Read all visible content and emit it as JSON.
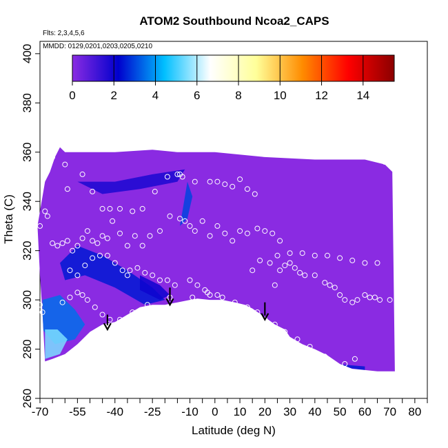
{
  "chart_data": {
    "type": "heatmap",
    "title": "ATOM2 Southbound Ncoa2_CAPS",
    "flights_label": "Flts: 2,3,4,5,6",
    "dates_label": "MMDD: 0129,0201,0203,0205,0210",
    "xlabel": "Latitude (deg N)",
    "ylabel": "Theta (C)",
    "xlim": [
      -70,
      85
    ],
    "ylim": [
      260,
      405
    ],
    "x_ticks": [
      -70,
      -55,
      -40,
      -25,
      -10,
      0,
      10,
      20,
      30,
      40,
      50,
      60,
      70,
      80
    ],
    "x_tick_labels": [
      "-70",
      "-55",
      "-40",
      "-25",
      "-10",
      "0",
      "10",
      "20",
      "30",
      "40",
      "50",
      "60",
      "70",
      "80"
    ],
    "x_minor_ticks": [
      -65,
      -60,
      -50,
      -45,
      -35,
      -30,
      -20,
      -15,
      -5,
      5,
      15,
      25,
      35,
      45,
      55,
      65,
      75,
      85
    ],
    "y_ticks": [
      260,
      280,
      300,
      320,
      340,
      360,
      380,
      400
    ],
    "y_tick_labels": [
      "260",
      "280",
      "300",
      "320",
      "340",
      "360",
      "380",
      "400"
    ],
    "colorbar": {
      "range": [
        0,
        15.5
      ],
      "ticks": [
        0,
        2,
        4,
        6,
        8,
        10,
        12,
        14
      ],
      "tick_labels": [
        "0",
        "2",
        "4",
        "6",
        "8",
        "10",
        "12",
        "14"
      ],
      "colors": [
        "#8a2be2",
        "#0000cd",
        "#00bfff",
        "#ffffff",
        "#ffff99",
        "#ff8c00",
        "#ff0000",
        "#8b0000"
      ]
    },
    "field_color": "#8a2be2",
    "domain_top": [
      [
        -68,
        348
      ],
      [
        -67,
        350
      ],
      [
        -66,
        352
      ],
      [
        -65,
        355
      ],
      [
        -64,
        358
      ],
      [
        -62,
        362
      ],
      [
        -60,
        360
      ],
      [
        -40,
        360
      ],
      [
        -25,
        361
      ],
      [
        -15,
        360
      ],
      [
        0,
        360
      ],
      [
        20,
        358
      ],
      [
        40,
        357
      ],
      [
        60,
        357
      ],
      [
        68,
        355
      ],
      [
        71,
        352
      ]
    ],
    "domain_bottom": [
      [
        -71,
        330
      ],
      [
        -70,
        310
      ],
      [
        -69,
        295
      ],
      [
        -68,
        275
      ],
      [
        -65,
        276
      ],
      [
        -60,
        278
      ],
      [
        -55,
        282
      ],
      [
        -50,
        287
      ],
      [
        -45,
        290
      ],
      [
        -40,
        291
      ],
      [
        -35,
        294
      ],
      [
        -30,
        297
      ],
      [
        -25,
        298
      ],
      [
        -20,
        298
      ],
      [
        -15,
        299
      ],
      [
        -10,
        300
      ],
      [
        -7,
        300.5
      ],
      [
        -2,
        300
      ],
      [
        3,
        300
      ],
      [
        8,
        299
      ],
      [
        12,
        298
      ],
      [
        15,
        296.5
      ],
      [
        20,
        293
      ],
      [
        24,
        290
      ],
      [
        28,
        288
      ],
      [
        30,
        285
      ],
      [
        35,
        282
      ],
      [
        40,
        280
      ],
      [
        45,
        277.5
      ],
      [
        50,
        274
      ],
      [
        55,
        272
      ],
      [
        60,
        271.5
      ],
      [
        65,
        271
      ],
      [
        70,
        271
      ],
      [
        72,
        271
      ]
    ],
    "features": [
      {
        "name": "blue-band-midlat",
        "value": 2.5,
        "poly": [
          [
            -62,
            315
          ],
          [
            -55,
            322
          ],
          [
            -45,
            318
          ],
          [
            -35,
            312
          ],
          [
            -25,
            305
          ],
          [
            -20,
            300
          ],
          [
            -28,
            298
          ],
          [
            -40,
            305
          ],
          [
            -52,
            310
          ],
          [
            -60,
            308
          ]
        ]
      },
      {
        "name": "blue-band-lowlat",
        "value": 2.0,
        "poly": [
          [
            -30,
            310
          ],
          [
            -22,
            306
          ],
          [
            -18,
            302
          ],
          [
            -22,
            300
          ],
          [
            -30,
            304
          ]
        ]
      },
      {
        "name": "blue-core-south",
        "value": 3.5,
        "poly": [
          [
            -69,
            300
          ],
          [
            -62,
            302
          ],
          [
            -56,
            296
          ],
          [
            -52,
            290
          ],
          [
            -56,
            284
          ],
          [
            -64,
            282
          ],
          [
            -69,
            288
          ]
        ]
      },
      {
        "name": "cyan-core-south",
        "value": 5.5,
        "poly": [
          [
            -68,
            288
          ],
          [
            -63,
            288
          ],
          [
            -59,
            284
          ],
          [
            -62,
            278
          ],
          [
            -68,
            276
          ]
        ]
      },
      {
        "name": "filament-upper",
        "value": 1.8,
        "poly": [
          [
            -55,
            348
          ],
          [
            -40,
            348
          ],
          [
            -25,
            351
          ],
          [
            -12,
            353
          ],
          [
            -15,
            348
          ],
          [
            -30,
            345
          ],
          [
            -45,
            343
          ]
        ]
      },
      {
        "name": "filament-vertical",
        "value": 3.0,
        "poly": [
          [
            -11,
            348
          ],
          [
            -9,
            342
          ],
          [
            -11,
            333
          ],
          [
            -14,
            330
          ],
          [
            -13,
            336
          ]
        ]
      },
      {
        "name": "bottom-edge-north",
        "value": 2.5,
        "poly": [
          [
            48,
            274
          ],
          [
            60,
            273
          ],
          [
            60,
            271.5
          ],
          [
            48,
            273
          ]
        ]
      }
    ],
    "observation_points": [
      [
        -70,
        330
      ],
      [
        -70,
        298
      ],
      [
        -69,
        295
      ],
      [
        -68,
        336
      ],
      [
        -67,
        334
      ],
      [
        -65,
        323
      ],
      [
        -63,
        322
      ],
      [
        -61,
        323
      ],
      [
        -59,
        324
      ],
      [
        -57,
        320
      ],
      [
        -55,
        322
      ],
      [
        -53,
        325
      ],
      [
        -51,
        328
      ],
      [
        -49,
        324
      ],
      [
        -47,
        323
      ],
      [
        -45,
        326
      ],
      [
        -43,
        325
      ],
      [
        -41,
        332
      ],
      [
        -38,
        327
      ],
      [
        -35,
        322
      ],
      [
        -32,
        326
      ],
      [
        -29,
        322
      ],
      [
        -26,
        326
      ],
      [
        -22,
        328
      ],
      [
        -18,
        334
      ],
      [
        -14,
        333
      ],
      [
        -12,
        332
      ],
      [
        -10,
        330
      ],
      [
        -8,
        328
      ],
      [
        -5,
        332
      ],
      [
        -2,
        326
      ],
      [
        1,
        330
      ],
      [
        4,
        327
      ],
      [
        7,
        324
      ],
      [
        10,
        328
      ],
      [
        13,
        327
      ],
      [
        17,
        329
      ],
      [
        20,
        328
      ],
      [
        23,
        327
      ],
      [
        26,
        324
      ],
      [
        -59,
        345
      ],
      [
        -53,
        351
      ],
      [
        -49,
        344
      ],
      [
        -45,
        337
      ],
      [
        -42,
        337
      ],
      [
        -38,
        337
      ],
      [
        -33,
        336
      ],
      [
        -29,
        337
      ],
      [
        -24,
        344
      ],
      [
        -19,
        350
      ],
      [
        -15,
        351
      ],
      [
        -14,
        351
      ],
      [
        -13,
        350
      ],
      [
        -8,
        348
      ],
      [
        -2,
        348
      ],
      [
        1,
        348
      ],
      [
        4,
        347
      ],
      [
        7,
        346
      ],
      [
        10,
        349
      ],
      [
        13,
        345
      ],
      [
        16,
        343
      ],
      [
        -61,
        299
      ],
      [
        -58,
        301
      ],
      [
        -55,
        303
      ],
      [
        -53,
        302
      ],
      [
        -51,
        300
      ],
      [
        -48,
        297
      ],
      [
        -45,
        294
      ],
      [
        -42,
        292
      ],
      [
        -38,
        292
      ],
      [
        -33,
        295
      ],
      [
        -27,
        298
      ],
      [
        -18,
        301
      ],
      [
        -9,
        301
      ],
      [
        -3,
        303
      ],
      [
        3,
        301
      ],
      [
        8,
        299
      ],
      [
        13,
        297
      ],
      [
        17,
        295
      ],
      [
        20,
        292
      ],
      [
        24,
        290
      ],
      [
        28,
        287
      ],
      [
        33,
        284
      ],
      [
        38,
        281
      ],
      [
        44,
        277
      ],
      [
        52,
        274
      ],
      [
        56,
        276
      ],
      [
        -58,
        312
      ],
      [
        -55,
        310
      ],
      [
        -52,
        314
      ],
      [
        -49,
        317
      ],
      [
        -46,
        318
      ],
      [
        -43,
        318
      ],
      [
        -40,
        315
      ],
      [
        -37,
        312
      ],
      [
        -34,
        312
      ],
      [
        -31,
        313
      ],
      [
        -28,
        311
      ],
      [
        -25,
        310
      ],
      [
        -22,
        308
      ],
      [
        -19,
        308
      ],
      [
        -16,
        306
      ],
      [
        24,
        306
      ],
      [
        26,
        312
      ],
      [
        28,
        314
      ],
      [
        30,
        315
      ],
      [
        32,
        313
      ],
      [
        34,
        311
      ],
      [
        36,
        310
      ],
      [
        40,
        310
      ],
      [
        44,
        307
      ],
      [
        46,
        306
      ],
      [
        48,
        305
      ],
      [
        50,
        302
      ],
      [
        52,
        300
      ],
      [
        55,
        299
      ],
      [
        57,
        300
      ],
      [
        60,
        302
      ],
      [
        62,
        301
      ],
      [
        64,
        301
      ],
      [
        66,
        300
      ],
      [
        70,
        300
      ],
      [
        22,
        315
      ],
      [
        25,
        318
      ],
      [
        30,
        319
      ],
      [
        35,
        319
      ],
      [
        40,
        318
      ],
      [
        45,
        318
      ],
      [
        50,
        317
      ],
      [
        55,
        316
      ],
      [
        60,
        315
      ],
      [
        65,
        315
      ],
      [
        -10,
        308
      ],
      [
        -7,
        306
      ],
      [
        -4,
        304
      ],
      [
        -2,
        302
      ],
      [
        1,
        302
      ],
      [
        15,
        312
      ],
      [
        18,
        316
      ],
      [
        -35,
        310
      ],
      [
        -65,
        358
      ],
      [
        -60,
        355
      ],
      [
        68,
        356
      ],
      [
        66,
        357
      ]
    ],
    "arrows": [
      {
        "x": -43,
        "y_top": 294,
        "y_bottom": 288
      },
      {
        "x": -18,
        "y_top": 305,
        "y_bottom": 298
      },
      {
        "x": 20,
        "y_top": 299,
        "y_bottom": 292
      }
    ]
  }
}
